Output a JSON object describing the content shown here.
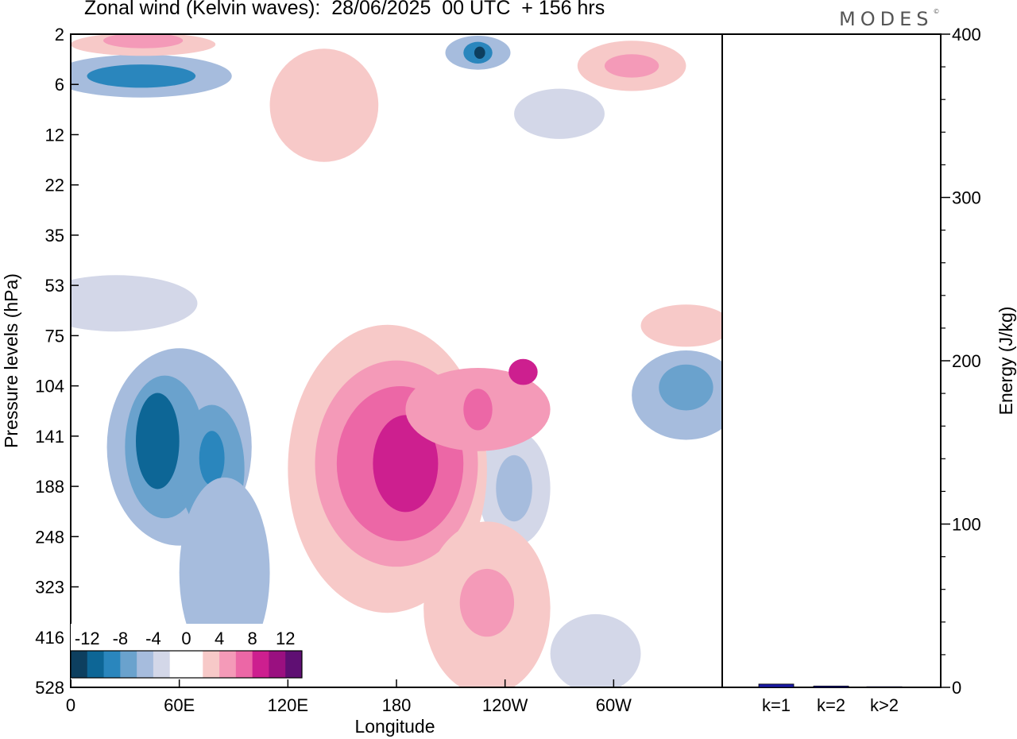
{
  "header": {
    "title": "Zonal wind (Kelvin waves):  28/06/2025  00 UTC  + 156 hrs",
    "logo": "MODES",
    "logo_mark": "©"
  },
  "chart_data": [
    {
      "type": "heatmap",
      "title": "Zonal wind (Kelvin waves):  28/06/2025  00 UTC  + 156 hrs",
      "xlabel": "Longitude",
      "ylabel": "Pressure levels (hPa)",
      "x_ticks": [
        "0",
        "60E",
        "120E",
        "180",
        "120W",
        "60W"
      ],
      "y_ticks": [
        "2",
        "6",
        "12",
        "22",
        "35",
        "53",
        "75",
        "104",
        "141",
        "188",
        "248",
        "323",
        "416",
        "528"
      ],
      "y_scale": "log",
      "colorbar": {
        "labels": [
          "-12",
          "-8",
          "-4",
          "0",
          "4",
          "8",
          "12"
        ],
        "colors": [
          "#0d3f5f",
          "#0d6696",
          "#2a86bd",
          "#6aa2cd",
          "#a6bcdd",
          "#d3d7e8",
          "#ffffff",
          "#ffffff",
          "#f7c9c8",
          "#f49ab8",
          "#ec67a6",
          "#cd1f8f",
          "#9a1080",
          "#5f0f73"
        ]
      },
      "series": [
        {
          "name": "negative",
          "contours": [
            {
              "x": 39,
              "y": 5,
              "rx": 50,
              "ry": 2,
              "level": 2
            },
            {
              "x": 39,
              "y": 5,
              "rx": 30,
              "ry": 1.2,
              "level": 4
            },
            {
              "x": 225,
              "y": 3,
              "rx": 18,
              "ry": 1.2,
              "level": 2
            },
            {
              "x": 225,
              "y": 3,
              "rx": 8,
              "ry": 0.7,
              "level": 4
            },
            {
              "x": 226,
              "y": 3,
              "rx": 3,
              "ry": 0.4,
              "level": 6
            },
            {
              "x": 270,
              "y": 9,
              "rx": 25,
              "ry": 3,
              "level": 1
            },
            {
              "x": 25,
              "y": 60,
              "rx": 45,
              "ry": 12,
              "level": 1
            },
            {
              "x": 60,
              "y": 150,
              "rx": 40,
              "ry": 80,
              "level": 2
            },
            {
              "x": 52,
              "y": 150,
              "rx": 22,
              "ry": 60,
              "level": 3
            },
            {
              "x": 48,
              "y": 145,
              "rx": 12,
              "ry": 40,
              "level": 5
            },
            {
              "x": 78,
              "y": 170,
              "rx": 18,
              "ry": 60,
              "level": 3
            },
            {
              "x": 78,
              "y": 160,
              "rx": 7,
              "ry": 25,
              "level": 4
            },
            {
              "x": 85,
              "y": 300,
              "rx": 25,
              "ry": 140,
              "level": 2
            },
            {
              "x": 245,
              "y": 190,
              "rx": 20,
              "ry": 60,
              "level": 1
            },
            {
              "x": 245,
              "y": 190,
              "rx": 10,
              "ry": 35,
              "level": 2
            },
            {
              "x": 340,
              "y": 110,
              "rx": 30,
              "ry": 30,
              "level": 2
            },
            {
              "x": 340,
              "y": 105,
              "rx": 15,
              "ry": 15,
              "level": 3
            },
            {
              "x": 290,
              "y": 450,
              "rx": 25,
              "ry": 90,
              "level": 1
            }
          ]
        },
        {
          "name": "positive",
          "contours": [
            {
              "x": 40,
              "y": 2.5,
              "rx": 40,
              "ry": 0.8,
              "level": 1
            },
            {
              "x": 40,
              "y": 2.3,
              "rx": 22,
              "ry": 0.5,
              "level": 2
            },
            {
              "x": 310,
              "y": 4,
              "rx": 30,
              "ry": 2,
              "level": 1
            },
            {
              "x": 310,
              "y": 4,
              "rx": 15,
              "ry": 1,
              "level": 2
            },
            {
              "x": 140,
              "y": 8,
              "rx": 30,
              "ry": 6,
              "level": 1
            },
            {
              "x": 175,
              "y": 170,
              "rx": 55,
              "ry": 120,
              "level": 1
            },
            {
              "x": 180,
              "y": 165,
              "rx": 45,
              "ry": 90,
              "level": 2
            },
            {
              "x": 182,
              "y": 165,
              "rx": 35,
              "ry": 70,
              "level": 3
            },
            {
              "x": 185,
              "y": 165,
              "rx": 18,
              "ry": 45,
              "level": 4
            },
            {
              "x": 225,
              "y": 120,
              "rx": 40,
              "ry": 30,
              "level": 2
            },
            {
              "x": 225,
              "y": 120,
              "rx": 8,
              "ry": 15,
              "level": 3
            },
            {
              "x": 250,
              "y": 95,
              "rx": 8,
              "ry": 8,
              "level": 4
            },
            {
              "x": 230,
              "y": 360,
              "rx": 35,
              "ry": 150,
              "level": 1
            },
            {
              "x": 230,
              "y": 350,
              "rx": 15,
              "ry": 60,
              "level": 2
            },
            {
              "x": 340,
              "y": 70,
              "rx": 25,
              "ry": 10,
              "level": 1
            }
          ]
        }
      ]
    },
    {
      "type": "bar",
      "ylabel": "Energy (J/kg)",
      "categories": [
        "k=1",
        "k=2",
        "k>2"
      ],
      "values": [
        2,
        0.8,
        0.4
      ],
      "ylim": [
        0,
        400
      ],
      "y_ticks": [
        "0",
        "100",
        "200",
        "300",
        "400"
      ],
      "color": "#1a1aa6"
    }
  ]
}
